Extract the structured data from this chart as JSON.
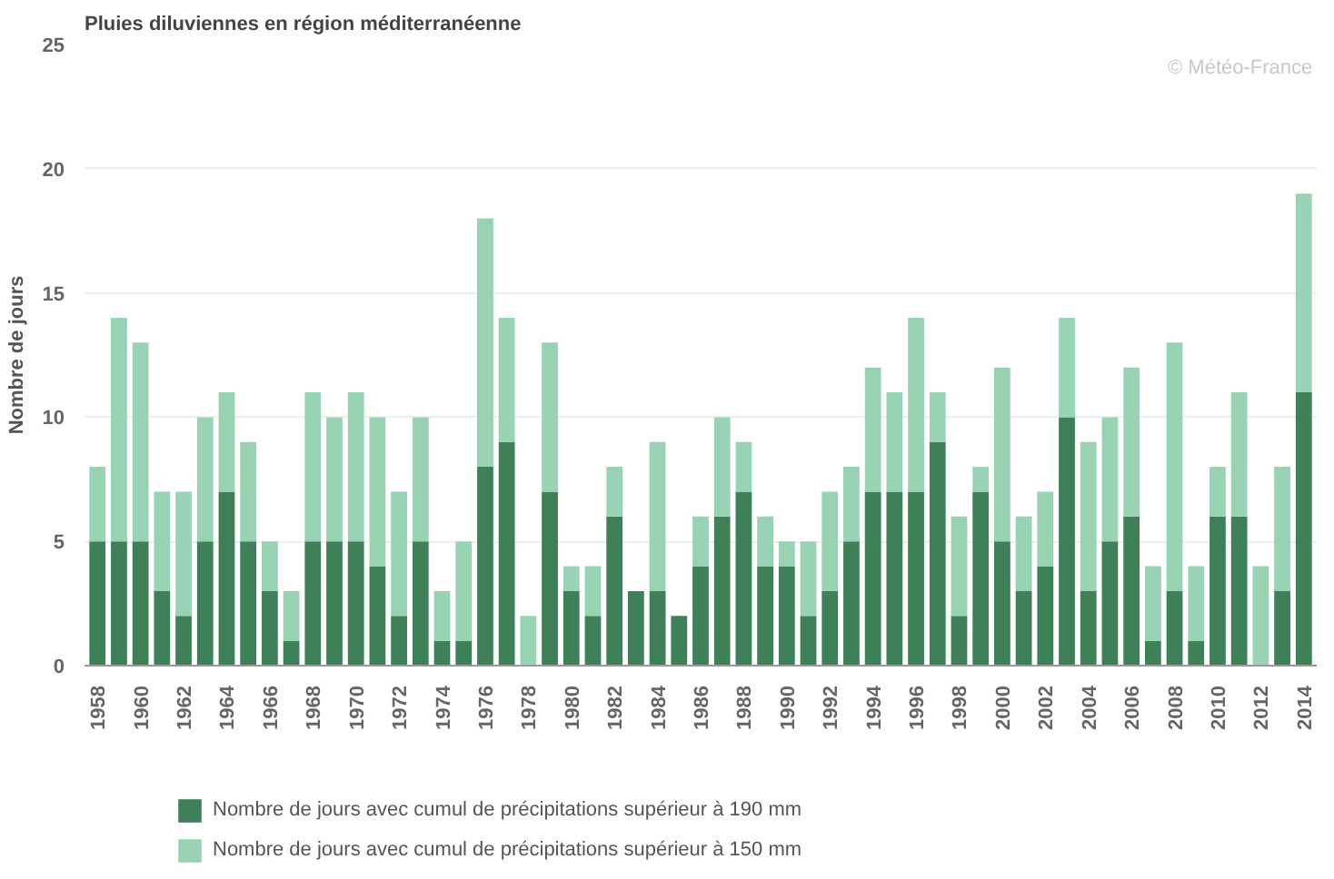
{
  "chart_data": {
    "type": "bar",
    "title": "Pluies diluviennes en région méditerranéenne",
    "ylabel": "Nombre de jours",
    "categories": [
      "1958",
      null,
      "1960",
      null,
      "1962",
      null,
      "1964",
      null,
      "1966",
      null,
      "1968",
      null,
      "1970",
      null,
      "1972",
      null,
      "1974",
      null,
      "1976",
      null,
      "1978",
      null,
      "1980",
      null,
      "1982",
      null,
      "1984",
      null,
      "1986",
      null,
      "1988",
      null,
      "1990",
      null,
      "1992",
      null,
      "1994",
      null,
      "1996",
      null,
      "1998",
      null,
      "2000",
      null,
      "2002",
      null,
      "2004",
      null,
      "2006",
      null,
      "2008",
      null,
      "2010",
      null,
      "2012",
      null,
      "2014"
    ],
    "stacked": true,
    "series": [
      {
        "name": "Nombre de jours avec cumul de précipitations supérieur à 190 mm",
        "color": "#3e8159",
        "values": [
          5,
          5,
          5,
          3,
          2,
          5,
          7,
          5,
          3,
          1,
          5,
          5,
          5,
          4,
          2,
          5,
          1,
          1,
          8,
          9,
          0,
          7,
          3,
          2,
          6,
          3,
          3,
          2,
          4,
          6,
          7,
          4,
          4,
          2,
          3,
          5,
          7,
          7,
          7,
          9,
          2,
          7,
          5,
          3,
          4,
          10,
          3,
          5,
          6,
          1,
          3,
          1,
          6,
          6,
          0,
          3,
          11
        ]
      },
      {
        "name": "Nombre de jours avec cumul de précipitations supérieur à 150 mm",
        "color": "#98d4b3",
        "values": [
          3,
          9,
          8,
          4,
          5,
          5,
          4,
          4,
          2,
          2,
          6,
          5,
          6,
          6,
          5,
          5,
          2,
          4,
          10,
          5,
          2,
          6,
          1,
          2,
          2,
          0,
          6,
          0,
          2,
          4,
          2,
          2,
          1,
          3,
          4,
          3,
          5,
          4,
          7,
          2,
          4,
          1,
          7,
          3,
          3,
          4,
          6,
          5,
          6,
          3,
          10,
          3,
          2,
          5,
          4,
          5,
          8
        ]
      }
    ],
    "ylim": [
      0,
      25
    ],
    "yticks": [
      0,
      5,
      10,
      15,
      20,
      25
    ],
    "grid": "y",
    "legend": "bottom left",
    "annotations": [
      "© Météo-France"
    ]
  }
}
